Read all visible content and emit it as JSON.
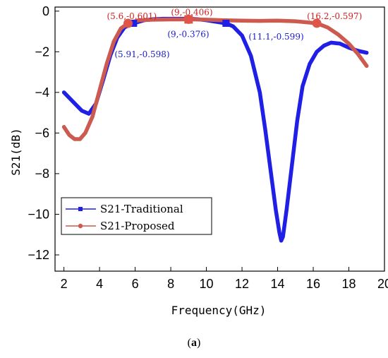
{
  "chart_data": {
    "type": "line",
    "xlabel": "Frequency(GHz)",
    "ylabel": "S21(dB)",
    "xlim": [
      1.5,
      20
    ],
    "ylim": [
      -12.8,
      0.2
    ],
    "xticks": [
      2,
      4,
      6,
      8,
      10,
      12,
      14,
      16,
      18,
      20
    ],
    "yticks": [
      0,
      -2,
      -4,
      -6,
      -8,
      -10,
      -12
    ],
    "legend_position": "lower-left",
    "series": [
      {
        "name": "S21-Traditional",
        "color": "#1f1fe6",
        "marker": "square",
        "x": [
          2.0,
          2.5,
          3.0,
          3.4,
          3.8,
          4.2,
          4.6,
          5.0,
          5.4,
          5.91,
          6.5,
          7.0,
          7.5,
          8.0,
          8.5,
          9.0,
          9.5,
          10.0,
          10.5,
          11.1,
          11.5,
          12.0,
          12.5,
          13.0,
          13.3,
          13.6,
          13.9,
          14.1,
          14.2,
          14.3,
          14.5,
          14.8,
          15.1,
          15.4,
          15.8,
          16.2,
          16.6,
          17.0,
          17.5,
          18.0,
          18.5,
          19.0
        ],
        "y": [
          -4.0,
          -4.45,
          -4.9,
          -5.05,
          -4.55,
          -3.4,
          -2.2,
          -1.3,
          -0.8,
          -0.598,
          -0.45,
          -0.4,
          -0.38,
          -0.38,
          -0.38,
          -0.376,
          -0.4,
          -0.45,
          -0.52,
          -0.599,
          -0.75,
          -1.2,
          -2.2,
          -4.0,
          -5.8,
          -7.8,
          -9.8,
          -10.9,
          -11.3,
          -11.1,
          -9.8,
          -7.6,
          -5.4,
          -3.7,
          -2.6,
          -2.0,
          -1.7,
          -1.55,
          -1.6,
          -1.8,
          -1.95,
          -2.05
        ],
        "markers_x": [
          5.91,
          9.0,
          11.1
        ],
        "markers_y": [
          -0.598,
          -0.376,
          -0.599
        ]
      },
      {
        "name": "S21-Proposed",
        "color": "#cc5a4e",
        "marker": "circle",
        "x": [
          2.0,
          2.3,
          2.6,
          2.9,
          3.2,
          3.6,
          4.0,
          4.4,
          4.8,
          5.2,
          5.6,
          6.2,
          7.0,
          8.0,
          9.0,
          10.0,
          11.0,
          12.0,
          13.0,
          14.0,
          15.0,
          16.2,
          16.8,
          17.4,
          18.0,
          18.5,
          19.0
        ],
        "y": [
          -5.7,
          -6.1,
          -6.3,
          -6.3,
          -6.0,
          -5.2,
          -3.9,
          -2.6,
          -1.5,
          -0.85,
          -0.601,
          -0.45,
          -0.42,
          -0.41,
          -0.406,
          -0.42,
          -0.45,
          -0.47,
          -0.48,
          -0.47,
          -0.5,
          -0.597,
          -0.8,
          -1.15,
          -1.6,
          -2.1,
          -2.7
        ],
        "markers_x": [
          5.6,
          9.0,
          16.2
        ],
        "markers_y": [
          -0.601,
          -0.406,
          -0.597
        ]
      }
    ],
    "annotations": [
      {
        "text": "(5.6,-0.601)",
        "x": 5.6,
        "y": -0.601,
        "color": "#d42020"
      },
      {
        "text": "(9,-0.406)",
        "x": 9.0,
        "y": -0.406,
        "color": "#d42020"
      },
      {
        "text": "(16.2,-0.597)",
        "x": 16.2,
        "y": -0.597,
        "color": "#d42020"
      },
      {
        "text": "(5.91,-0.598)",
        "x": 5.91,
        "y": -0.598,
        "color": "#1a1ad0"
      },
      {
        "text": "(9,-0.376)",
        "x": 9.0,
        "y": -0.376,
        "color": "#1a1ad0"
      },
      {
        "text": "(11.1,-0.599)",
        "x": 11.1,
        "y": -0.599,
        "color": "#1a1ad0"
      }
    ]
  },
  "caption": {
    "open": "(",
    "label": "a",
    "close": ")"
  }
}
